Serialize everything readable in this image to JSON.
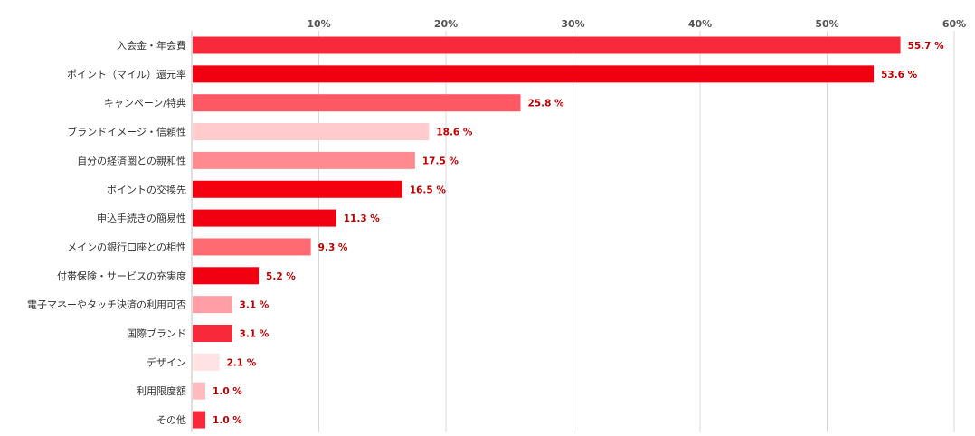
{
  "chart_data": {
    "type": "bar",
    "orientation": "horizontal",
    "title": "",
    "xlabel": "",
    "ylabel": "",
    "xlim": [
      0,
      60
    ],
    "xticks": [
      10,
      20,
      30,
      40,
      50,
      60
    ],
    "xtick_labels": [
      "10%",
      "20%",
      "30%",
      "40%",
      "50%",
      "60%"
    ],
    "grid": true,
    "categories": [
      "入会金・年会費",
      "ポイント（マイル）還元率",
      "キャンペーン/特典",
      "ブランドイメージ・信頼性",
      "自分の経済圏との親和性",
      "ポイントの交換先",
      "申込手続きの簡易性",
      "メインの銀行口座との相性",
      "付帯保険・サービスの充実度",
      "電子マネーやタッチ決済の利用可否",
      "国際ブランド",
      "デザイン",
      "利用限度額",
      "その他"
    ],
    "values": [
      55.7,
      53.6,
      25.8,
      18.6,
      17.5,
      16.5,
      11.3,
      9.3,
      5.2,
      3.1,
      3.1,
      2.1,
      1.0,
      1.0
    ],
    "value_labels": [
      "55.7 %",
      "53.6 %",
      "25.8 %",
      "18.6 %",
      "17.5 %",
      "16.5 %",
      "11.3 %",
      "9.3 %",
      "5.2 %",
      "3.1 %",
      "3.1 %",
      "2.1 %",
      "1.0 %",
      "1.0 %"
    ],
    "colors": [
      "#f7293b",
      "#f00010",
      "#ff5865",
      "#ffcbcd",
      "#ff8a90",
      "#f5000f",
      "#f00010",
      "#ff6b72",
      "#f00010",
      "#ff9fa5",
      "#f7293b",
      "#ffe2e4",
      "#ffbcc0",
      "#f7293b"
    ],
    "gridline_color": "#d9d9d9",
    "value_label_color": "#c00000"
  }
}
